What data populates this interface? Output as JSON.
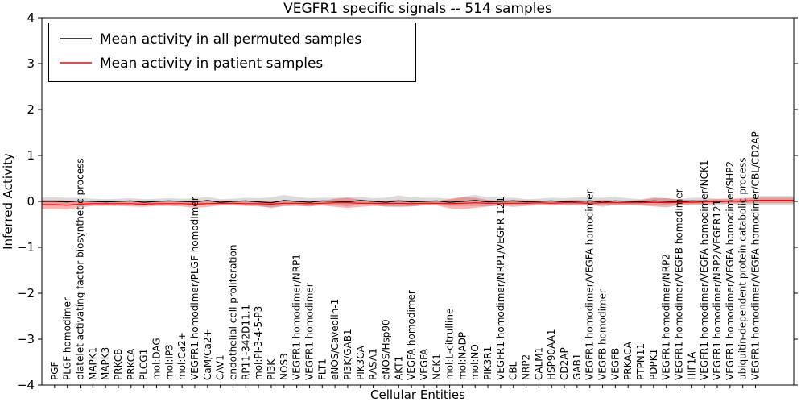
{
  "chart_data": {
    "type": "line",
    "title": "VEGFR1 specific signals -- 514 samples",
    "xlabel": "Cellular Entities",
    "ylabel": "Inferred Activity",
    "ylim": [
      -4,
      4
    ],
    "yticks": [
      4,
      3,
      2,
      1,
      0,
      -1,
      -2,
      -3,
      -4
    ],
    "legend_position": "upper left",
    "grid": false,
    "categories": [
      "PGF",
      "PLGF homodimer",
      "platelet activating factor biosynthetic process",
      "MAPK1",
      "MAPK3",
      "PRKCB",
      "PRKCA",
      "PLCG1",
      "mol:DAG",
      "mol:IP3",
      "mol:Ca2+",
      "VEGFR1 homodimer/PLGF homodimer",
      "CaM/Ca2+",
      "CAV1",
      "endothelial cell proliferation",
      "RP11-342D11.1",
      "mol:PI-3-4-5-P3",
      "PI3K",
      "NOS3",
      "VEGFR1 homodimer/NRP1",
      "VEGFR1 homodimer",
      "FLT1",
      "eNOS/Caveolin-1",
      "PI3K/GAB1",
      "PIK3CA",
      "RASA1",
      "eNOS/Hsp90",
      "AKT1",
      "VEGFA homodimer",
      "VEGFA",
      "NCK1",
      "mol:L-citrulline",
      "mol:NADP",
      "mol:NO",
      "PIK3R1",
      "VEGFR1 homodimer/NRP1/VEGFR 121",
      "CBL",
      "NRP2",
      "CALM1",
      "HSP90AA1",
      "CD2AP",
      "GAB1",
      "VEGFR1 homodimer/VEGFA homodimer",
      "VEGFB homodimer",
      "VEGFB",
      "PRKACA",
      "PTPN11",
      "PDPK1",
      "VEGFR1 homodimer/NRP2",
      "VEGFR1 homodimer/VEGFB homodimer",
      "HIF1A",
      "VEGFR1 homodimer/VEGFA homodimer/NCK1",
      "VEGFR1 homodimer/NRP2/VEGFR121",
      "VEGFR1 homodimer/VEGFA homodimer/SHP2",
      "ubiquitin-dependent protein catabolic process",
      "VEGFR1 homodimer/VEGFA homodimer/CBL/CD2AP"
    ],
    "series": [
      {
        "key": "permuted",
        "name": "Mean activity in all permuted samples",
        "color": "#000000",
        "band_color": "#999999",
        "band_opacity": 0.35,
        "values": [
          0.0,
          -0.01,
          0.01,
          0.0,
          -0.01,
          0.0,
          0.01,
          -0.02,
          0.0,
          0.01,
          0.0,
          -0.01,
          0.02,
          -0.02,
          0.0,
          0.01,
          -0.01,
          -0.03,
          0.02,
          0.0,
          -0.02,
          0.01,
          0.0,
          -0.01,
          0.02,
          0.0,
          -0.02,
          0.01,
          -0.01,
          0.0,
          0.01,
          -0.02,
          0.0,
          0.02,
          -0.01,
          0.0,
          0.01,
          -0.01,
          0.0,
          0.01,
          -0.01,
          0.0,
          0.01,
          -0.02,
          0.01,
          0.0,
          -0.01,
          0.01,
          0.0,
          -0.01,
          0.01,
          0.0,
          -0.01,
          0.01,
          0.0,
          0.02
        ],
        "band_halfwidth": [
          0.09,
          0.09,
          0.07,
          0.06,
          0.06,
          0.06,
          0.06,
          0.07,
          0.06,
          0.06,
          0.06,
          0.08,
          0.08,
          0.07,
          0.06,
          0.07,
          0.08,
          0.12,
          0.12,
          0.1,
          0.09,
          0.07,
          0.08,
          0.1,
          0.08,
          0.07,
          0.1,
          0.12,
          0.1,
          0.08,
          0.07,
          0.08,
          0.1,
          0.12,
          0.1,
          0.08,
          0.07,
          0.06,
          0.06,
          0.07,
          0.08,
          0.09,
          0.08,
          0.1,
          0.09,
          0.07,
          0.06,
          0.08,
          0.07,
          0.06,
          0.07,
          0.08,
          0.07,
          0.06,
          0.08,
          0.1
        ]
      },
      {
        "key": "patient",
        "name": "Mean activity in patient samples",
        "color": "#ff0000",
        "band_color": "#ff0000",
        "band_opacity": 0.3,
        "values": [
          -0.07,
          -0.08,
          -0.06,
          -0.05,
          -0.05,
          -0.05,
          -0.05,
          -0.06,
          -0.05,
          -0.05,
          -0.05,
          -0.06,
          -0.05,
          -0.04,
          -0.04,
          -0.05,
          -0.05,
          -0.06,
          -0.04,
          -0.04,
          -0.05,
          -0.04,
          -0.03,
          -0.03,
          -0.04,
          -0.04,
          -0.05,
          -0.04,
          -0.05,
          -0.04,
          -0.04,
          -0.05,
          -0.04,
          -0.03,
          -0.04,
          -0.04,
          -0.04,
          -0.04,
          -0.03,
          -0.04,
          -0.03,
          -0.03,
          -0.04,
          -0.03,
          -0.03,
          -0.03,
          -0.03,
          -0.02,
          -0.03,
          -0.02,
          -0.02,
          -0.01,
          0.0,
          0.0,
          0.01,
          0.02
        ],
        "band_halfwidth": [
          0.1,
          0.1,
          0.07,
          0.05,
          0.05,
          0.05,
          0.06,
          0.06,
          0.05,
          0.05,
          0.06,
          0.08,
          0.07,
          0.05,
          0.05,
          0.05,
          0.06,
          0.07,
          0.06,
          0.05,
          0.06,
          0.05,
          0.09,
          0.11,
          0.08,
          0.06,
          0.06,
          0.08,
          0.06,
          0.05,
          0.05,
          0.1,
          0.13,
          0.11,
          0.07,
          0.05,
          0.08,
          0.06,
          0.05,
          0.05,
          0.05,
          0.06,
          0.05,
          0.06,
          0.05,
          0.05,
          0.06,
          0.09,
          0.1,
          0.06,
          0.05,
          0.05,
          0.05,
          0.05,
          0.05,
          0.06
        ]
      }
    ]
  }
}
